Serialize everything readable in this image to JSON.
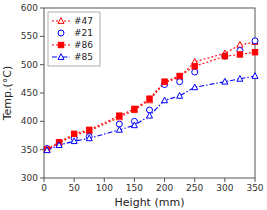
{
  "chart_data": {
    "type": "line",
    "xlabel": "Height (mm)",
    "ylabel": "Temp.(°C)",
    "x": [
      5,
      25,
      50,
      75,
      125,
      150,
      175,
      200,
      225,
      250,
      300,
      325,
      350
    ],
    "xlim": [
      0,
      350
    ],
    "ylim": [
      300,
      600
    ],
    "xticks": [
      0,
      50,
      100,
      150,
      200,
      250,
      300,
      350
    ],
    "yticks": [
      300,
      350,
      400,
      450,
      500,
      550,
      600
    ],
    "grid": false,
    "legend": "upper left",
    "series": [
      {
        "name": "#47",
        "color": "red",
        "line_style": "dotted",
        "marker": "triangle-open",
        "values": [
          350,
          362,
          375,
          383,
          407,
          420,
          437,
          468,
          478,
          505,
          520,
          535,
          540
        ]
      },
      {
        "name": "#21",
        "color": "blue",
        "line_style": "none",
        "marker": "circle-open",
        "values": [
          352,
          360,
          370,
          373,
          395,
          400,
          420,
          465,
          470,
          487,
          515,
          525,
          542
        ]
      },
      {
        "name": "#86",
        "color": "red",
        "line_style": "dotted",
        "marker": "square",
        "values": [
          350,
          363,
          378,
          385,
          410,
          422,
          440,
          470,
          480,
          497,
          515,
          518,
          522
        ]
      },
      {
        "name": "#85",
        "color": "blue",
        "line_style": "dashdot",
        "marker": "triangle-open",
        "values": [
          349,
          358,
          365,
          370,
          385,
          393,
          410,
          437,
          445,
          460,
          470,
          475,
          480
        ]
      }
    ]
  }
}
